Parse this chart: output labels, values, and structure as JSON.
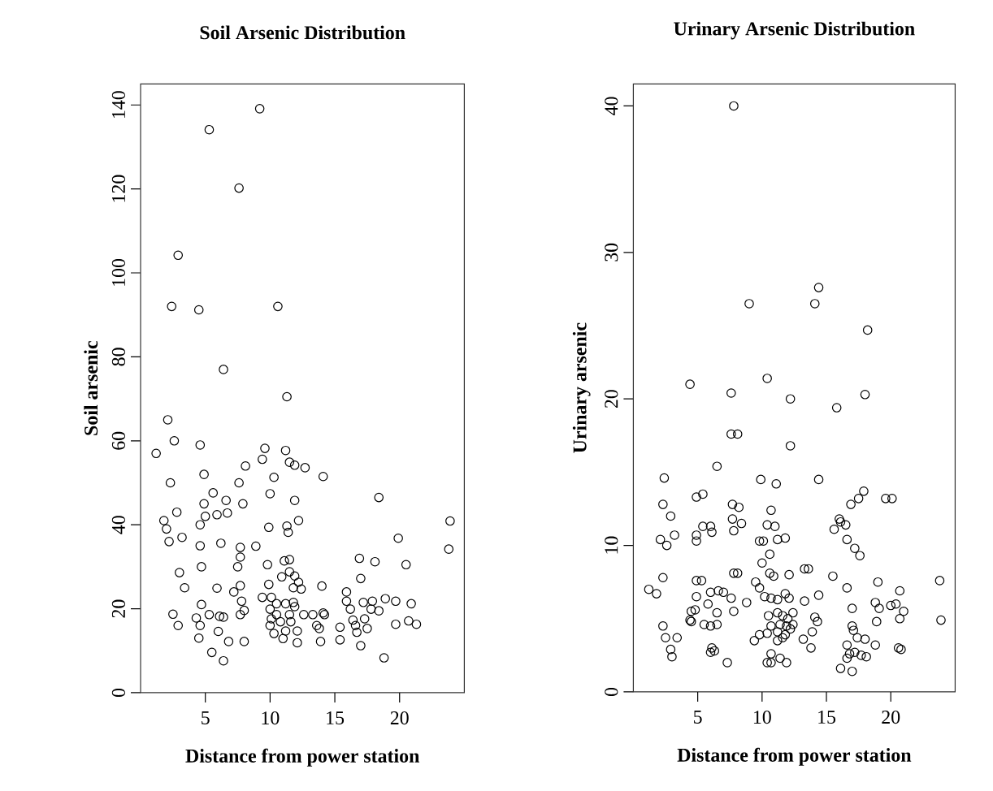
{
  "chart_data": [
    {
      "type": "scatter",
      "title": "Soil Arsenic Distribution",
      "xlabel": "Distance from power station",
      "ylabel": "Soil arsenic",
      "color": "#000000",
      "marker": "circle",
      "xlim": [
        0,
        25
      ],
      "ylim": [
        0,
        145
      ],
      "xticks": [
        5,
        10,
        15,
        20
      ],
      "yticks": [
        0,
        20,
        40,
        60,
        80,
        100,
        120,
        140
      ],
      "x": [
        1.2,
        2.1,
        2.6,
        2.3,
        2.8,
        1.8,
        2.0,
        2.2,
        3.2,
        3.0,
        3.4,
        2.5,
        2.9,
        4.6,
        4.9,
        4.9,
        5.0,
        4.6,
        4.6,
        4.7,
        4.7,
        4.6,
        4.5,
        5.6,
        6.6,
        6.7,
        5.9,
        6.2,
        5.9,
        5.3,
        6.1,
        6.4,
        6.0,
        5.5,
        6.4,
        6.8,
        6.4,
        7.6,
        8.1,
        7.9,
        7.7,
        7.7,
        7.5,
        7.7,
        7.2,
        7.8,
        7.7,
        8.0,
        8.0,
        8.9,
        9.4,
        9.4,
        9.6,
        10.3,
        10.0,
        9.9,
        9.8,
        9.9,
        10.1,
        10.0,
        10.1,
        10.0,
        10.3,
        10.5,
        10.5,
        10.8,
        10.9,
        11.1,
        11.3,
        11.2,
        11.5,
        11.9,
        12.7,
        14.1,
        11.3,
        11.4,
        11.9,
        12.2,
        11.5,
        11.5,
        11.8,
        11.9,
        12.2,
        12.4,
        11.2,
        11.8,
        11.9,
        11.5,
        11.6,
        11.2,
        11.0,
        12.1,
        12.1,
        12.6,
        13.3,
        13.6,
        13.8,
        14.0,
        14.1,
        13.9,
        14.2,
        15.4,
        15.4,
        15.9,
        15.9,
        16.2,
        16.4,
        16.6,
        16.7,
        17.0,
        16.9,
        17.0,
        17.2,
        17.3,
        17.5,
        17.8,
        18.1,
        18.4,
        17.9,
        18.4,
        18.8,
        18.9,
        19.7,
        19.7,
        19.9,
        20.5,
        20.9,
        20.7,
        21.3,
        23.9,
        23.8,
        9.2,
        5.3,
        7.6,
        2.9,
        2.4,
        4.5,
        10.6,
        4.3
      ],
      "values": [
        57,
        65,
        60,
        50,
        43,
        41,
        39,
        36,
        37,
        28.6,
        25,
        18.7,
        16,
        59,
        52,
        45,
        42,
        40,
        35,
        30,
        21,
        16,
        13,
        47.6,
        45.8,
        42.8,
        42.4,
        35.6,
        24.9,
        18.6,
        18.2,
        18,
        14.6,
        9.6,
        7.6,
        12.2,
        77,
        50,
        54,
        45,
        34.6,
        32.3,
        30,
        25.5,
        24,
        21.8,
        18.6,
        19.6,
        12.2,
        34.9,
        22.7,
        55.6,
        58.2,
        51.3,
        47.4,
        39.4,
        30.5,
        25.8,
        22.7,
        19.9,
        17.6,
        16,
        14.1,
        21.2,
        18.6,
        16.9,
        27.6,
        31.4,
        70.5,
        57.7,
        54.9,
        54.2,
        53.6,
        51.5,
        39.7,
        38.2,
        45.8,
        41,
        31.7,
        28.8,
        25,
        27.8,
        26.3,
        24.7,
        21.2,
        21.5,
        20.5,
        18.6,
        16.9,
        14.7,
        12.9,
        11.9,
        14.7,
        18.6,
        18.6,
        16,
        15.3,
        25.4,
        19,
        12.2,
        18.6,
        15.6,
        12.6,
        24,
        21.8,
        19.9,
        17.3,
        16,
        14.4,
        11.2,
        32,
        27.2,
        21.5,
        17.6,
        15.3,
        19.9,
        31.2,
        46.5,
        21.8,
        19.5,
        8.3,
        22.4,
        21.8,
        16.3,
        36.8,
        30.5,
        21.2,
        17.1,
        16.3,
        40.9,
        34.2,
        139.1,
        134.1,
        120.2,
        104.2,
        92,
        91.2,
        92,
        17.8
      ]
    },
    {
      "type": "scatter",
      "title": "Urinary Arsenic Distribution",
      "xlabel": "Distance from power station",
      "ylabel": "Urinary arsenic",
      "color": "#000000",
      "marker": "circle",
      "xlim": [
        0,
        25
      ],
      "ylim": [
        0,
        41.5
      ],
      "xticks": [
        5,
        10,
        15,
        20
      ],
      "yticks": [
        0,
        10,
        20,
        30,
        40
      ],
      "x": [
        7.8,
        9.0,
        14.4,
        14.1,
        18.2,
        4.4,
        7.6,
        10.4,
        12.2,
        15.8,
        18.0,
        7.6,
        8.1,
        12.2,
        6.5,
        2.4,
        9.9,
        11.1,
        14.4,
        4.9,
        5.4,
        2.3,
        7.7,
        8.2,
        2.9,
        10.7,
        17.9,
        17.5,
        16.9,
        19.6,
        20.1,
        16.0,
        16.1,
        16.5,
        15.6,
        16.6,
        17.2,
        17.6,
        5.4,
        6.0,
        6.1,
        4.9,
        4.9,
        2.1,
        3.2,
        2.6,
        7.7,
        7.8,
        8.4,
        10.4,
        11.0,
        9.8,
        10.1,
        11.2,
        11.8,
        10.6,
        10.0,
        10.6,
        7.8,
        8.1,
        10.9,
        12.1,
        13.3,
        13.6,
        15.5,
        16.6,
        19.0,
        20.7,
        23.8,
        23.9,
        1.2,
        1.8,
        2.3,
        4.9,
        5.3,
        4.9,
        6.0,
        6.6,
        5.8,
        6.5,
        7.0,
        7.6,
        7.8,
        8.8,
        9.5,
        9.8,
        10.2,
        10.7,
        11.2,
        11.8,
        12.1,
        13.3,
        14.4,
        10.5,
        11.2,
        11.6,
        12.0,
        12.4,
        10.7,
        11.4,
        11.9,
        12.4,
        4.5,
        4.8,
        4.5,
        4.4,
        5.5,
        6.0,
        6.5,
        6.1,
        6.3,
        6.0,
        2.3,
        2.5,
        3.4,
        2.9,
        3.0,
        7.3,
        9.4,
        9.8,
        10.4,
        11.2,
        11.8,
        12.2,
        11.2,
        11.6,
        13.2,
        13.9,
        14.1,
        14.3,
        13.8,
        10.4,
        10.7,
        11.4,
        11.9,
        10.7,
        17.0,
        17.0,
        17.1,
        17.4,
        18.0,
        18.8,
        16.6,
        16.8,
        17.2,
        17.7,
        18.1,
        16.1,
        17.0,
        16.6,
        18.8,
        19.1,
        18.9,
        20.0,
        20.4,
        21.0,
        20.7,
        20.6,
        20.8
      ],
      "values": [
        40,
        26.5,
        27.6,
        26.5,
        24.7,
        21,
        20.4,
        21.4,
        20,
        19.4,
        20.3,
        17.6,
        17.6,
        16.8,
        15.4,
        14.6,
        14.5,
        14.2,
        14.5,
        13.3,
        13.5,
        12.8,
        12.8,
        12.6,
        12,
        12.4,
        13.7,
        13.2,
        12.8,
        13.2,
        13.2,
        11.8,
        11.6,
        11.4,
        11.1,
        10.4,
        9.8,
        9.3,
        11.3,
        11.3,
        10.9,
        10.7,
        10.3,
        10.4,
        10.7,
        10,
        11.8,
        11.0,
        11.5,
        11.4,
        11.3,
        10.3,
        10.3,
        10.4,
        10.5,
        9.4,
        8.8,
        8.1,
        8.1,
        8.1,
        7.9,
        8.0,
        8.4,
        8.4,
        7.9,
        7.1,
        7.5,
        6.9,
        7.6,
        4.9,
        7.0,
        6.7,
        7.8,
        7.6,
        7.6,
        6.5,
        6.8,
        6.9,
        6.0,
        5.4,
        6.8,
        6.4,
        5.5,
        6.1,
        7.5,
        7.1,
        6.5,
        6.4,
        6.3,
        6.7,
        6.4,
        6.2,
        6.6,
        5.2,
        5.4,
        5.2,
        5.0,
        5.4,
        4.5,
        4.6,
        4.5,
        4.6,
        5.5,
        5.6,
        4.8,
        4.9,
        4.6,
        4.5,
        4.6,
        3.0,
        2.8,
        2.7,
        4.5,
        3.7,
        3.7,
        2.9,
        2.4,
        2.0,
        3.5,
        3.9,
        4.0,
        4.1,
        3.9,
        4.3,
        3.5,
        3.7,
        3.6,
        4.1,
        5.1,
        4.8,
        3.0,
        2.0,
        2.0,
        2.3,
        2.0,
        2.6,
        5.7,
        4.5,
        4.2,
        3.7,
        3.6,
        3.2,
        3.2,
        2.6,
        2.7,
        2.5,
        2.4,
        1.6,
        1.4,
        2.3,
        6.1,
        5.7,
        4.8,
        5.9,
        6.0,
        5.5,
        5.0,
        3.0,
        2.9
      ]
    }
  ]
}
